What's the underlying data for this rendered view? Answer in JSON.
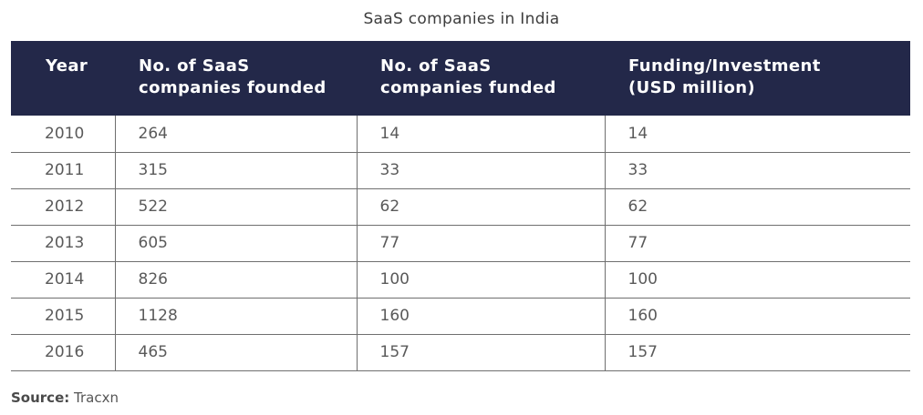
{
  "title": "SaaS companies in India",
  "table": {
    "headers": [
      "Year",
      "No. of SaaS companies founded",
      "No. of SaaS companies funded",
      "Funding/Investment (USD million)"
    ],
    "header_lines": [
      [
        "Year",
        ""
      ],
      [
        "No. of SaaS",
        "companies founded"
      ],
      [
        "No. of SaaS",
        "companies funded"
      ],
      [
        "Funding/Investment",
        "(USD million)"
      ]
    ],
    "rows": [
      [
        "2010",
        "264",
        "14",
        "14"
      ],
      [
        "2011",
        "315",
        "33",
        "33"
      ],
      [
        "2012",
        "522",
        "62",
        "62"
      ],
      [
        "2013",
        "605",
        "77",
        "77"
      ],
      [
        "2014",
        "826",
        "100",
        "100"
      ],
      [
        "2015",
        "1128",
        "160",
        "160"
      ],
      [
        "2016",
        "465",
        "157",
        "157"
      ]
    ]
  },
  "source": {
    "label": "Source:",
    "value": "Tracxn"
  },
  "colors": {
    "header_background": "#232849",
    "header_text": "#ffffff",
    "body_text": "#5a5a5a",
    "rule": "#6f6f6f"
  }
}
